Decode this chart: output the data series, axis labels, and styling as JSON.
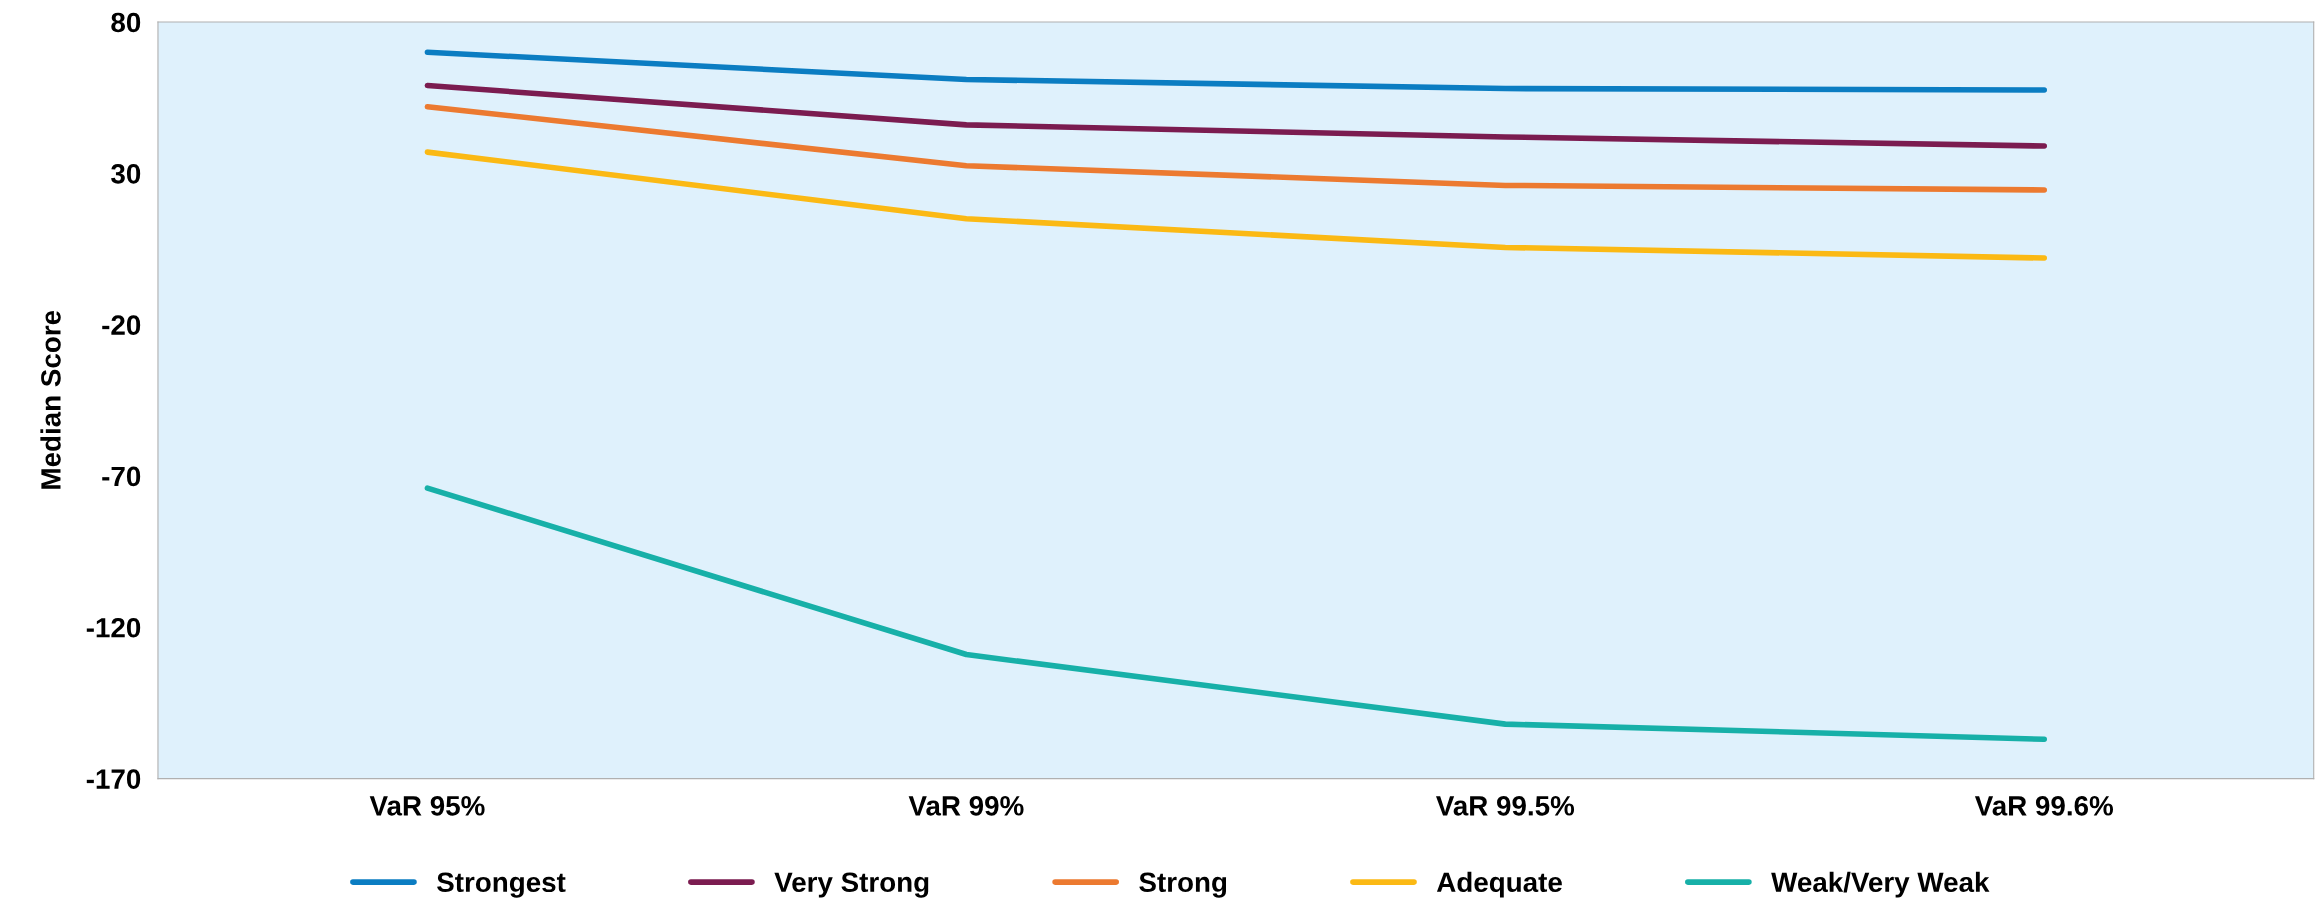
{
  "chart_data": {
    "type": "line",
    "ylabel": "Median Score",
    "categories": [
      "VaR 95%",
      "VaR 99%",
      "VaR 99.5%",
      "VaR 99.6%"
    ],
    "ylim": [
      -170,
      80
    ],
    "yticks": [
      -170,
      -120,
      -70,
      -20,
      30,
      80
    ],
    "grid": false,
    "legend": "bottom",
    "marker": "none",
    "line_style": "solid",
    "series": [
      {
        "name": "Strongest",
        "color": "#0b7dc2",
        "values": [
          70,
          61,
          58,
          57.5
        ]
      },
      {
        "name": "Very Strong",
        "color": "#7b1c50",
        "values": [
          59,
          46,
          42,
          39
        ]
      },
      {
        "name": "Strong",
        "color": "#ec7a30",
        "values": [
          52,
          32.5,
          26,
          24.5
        ]
      },
      {
        "name": "Adequate",
        "color": "#fbb914",
        "values": [
          37,
          15,
          5.5,
          2
        ]
      },
      {
        "name": "Weak/Very Weak",
        "color": "#17b0a8",
        "values": [
          -74,
          -129,
          -152,
          -157
        ]
      }
    ]
  }
}
